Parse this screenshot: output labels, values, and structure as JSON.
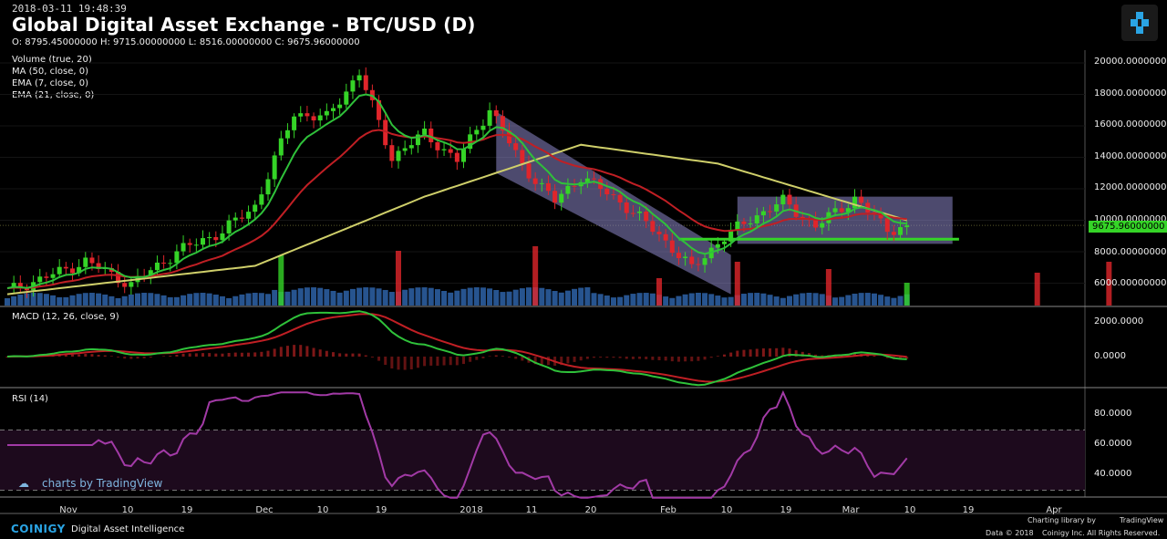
{
  "header": {
    "timestamp": "2018-03-11 19:48:39",
    "title": "Global Digital Asset Exchange - BTC/USD (D)",
    "ohlc": "O: 8795.45000000 H: 9715.00000000 L: 8516.00000000 C: 9675.96000000"
  },
  "indicators": {
    "volume": "Volume (true, 20)",
    "ma": "MA (50, close, 0)",
    "ema7": "EMA (7, close, 0)",
    "ema21": "EMA (21, close, 0)",
    "macd": "MACD (12, 26, close, 9)",
    "rsi": "RSI (14)"
  },
  "price_axis": [
    "20000.00000000",
    "18000.00000000",
    "16000.00000000",
    "14000.00000000",
    "12000.00000000",
    "10000.00000000",
    "8000.00000000",
    "6000.00000000"
  ],
  "current_price_tag": "9675.96000000",
  "macd_axis": [
    "2000.0000",
    "0.0000"
  ],
  "rsi_axis": [
    "80.0000",
    "60.0000",
    "40.0000"
  ],
  "x_axis": [
    "Nov",
    "10",
    "19",
    "Dec",
    "10",
    "19",
    "2018",
    "11",
    "20",
    "Feb",
    "10",
    "19",
    "Mar",
    "10",
    "19",
    "Apr"
  ],
  "footer": {
    "brand": "COINIGY",
    "brand_sub": "Digital Asset Intelligence",
    "watermark": "charts by TradingView",
    "charting_library": "Charting library by",
    "tradingview": "TradingView",
    "data_credit": "Data © 2018",
    "coinigy_credit": "Coinigy Inc. All Rights Reserved."
  },
  "colors": {
    "up": "#35d427",
    "down": "#e0252b",
    "ema7": "#2fc13a",
    "ema21": "#c01f24",
    "ma50": "#cfcf6a",
    "volume": "#2e63a8",
    "channel": "#8c86c8",
    "rsi": "#a23aa6"
  },
  "chart_data": {
    "type": "candlestick",
    "title": "Global Digital Asset Exchange - BTC/USD (D)",
    "ylim": [
      5500,
      20500
    ],
    "last_ohlc": {
      "open": 8795.45,
      "high": 9715.0,
      "low": 8516.0,
      "close": 9675.96
    },
    "close_series": [
      {
        "date": "2017-10-24",
        "close": 5500
      },
      {
        "date": "2017-11-01",
        "close": 6700
      },
      {
        "date": "2017-11-05",
        "close": 7400
      },
      {
        "date": "2017-11-12",
        "close": 5900
      },
      {
        "date": "2017-11-19",
        "close": 8000
      },
      {
        "date": "2017-11-26",
        "close": 9300
      },
      {
        "date": "2017-12-01",
        "close": 10900
      },
      {
        "date": "2017-12-07",
        "close": 16800
      },
      {
        "date": "2017-12-12",
        "close": 16500
      },
      {
        "date": "2017-12-17",
        "close": 19400
      },
      {
        "date": "2017-12-22",
        "close": 14000
      },
      {
        "date": "2017-12-27",
        "close": 15500
      },
      {
        "date": "2018-01-01",
        "close": 13800
      },
      {
        "date": "2018-01-06",
        "close": 17100
      },
      {
        "date": "2018-01-11",
        "close": 13500
      },
      {
        "date": "2018-01-16",
        "close": 11200
      },
      {
        "date": "2018-01-20",
        "close": 12800
      },
      {
        "date": "2018-01-26",
        "close": 11200
      },
      {
        "date": "2018-02-01",
        "close": 9100
      },
      {
        "date": "2018-02-06",
        "close": 6900
      },
      {
        "date": "2018-02-10",
        "close": 8600
      },
      {
        "date": "2018-02-15",
        "close": 10100
      },
      {
        "date": "2018-02-20",
        "close": 11200
      },
      {
        "date": "2018-02-25",
        "close": 9600
      },
      {
        "date": "2018-03-03",
        "close": 11400
      },
      {
        "date": "2018-03-08",
        "close": 9400
      },
      {
        "date": "2018-03-11",
        "close": 9676
      }
    ],
    "ma50": [
      {
        "date": "2017-10-24",
        "value": 5300
      },
      {
        "date": "2017-12-01",
        "value": 7100
      },
      {
        "date": "2017-12-27",
        "value": 11500
      },
      {
        "date": "2018-01-20",
        "value": 14800
      },
      {
        "date": "2018-02-10",
        "value": 13600
      },
      {
        "date": "2018-03-11",
        "value": 10000
      }
    ],
    "channels": [
      {
        "type": "descending",
        "from": "2018-01-07",
        "to": "2018-02-12"
      },
      {
        "type": "range",
        "from": "2018-02-13",
        "to": "2018-03-18",
        "high": 11500,
        "low": 8500
      }
    ],
    "support_line": 8800
  }
}
